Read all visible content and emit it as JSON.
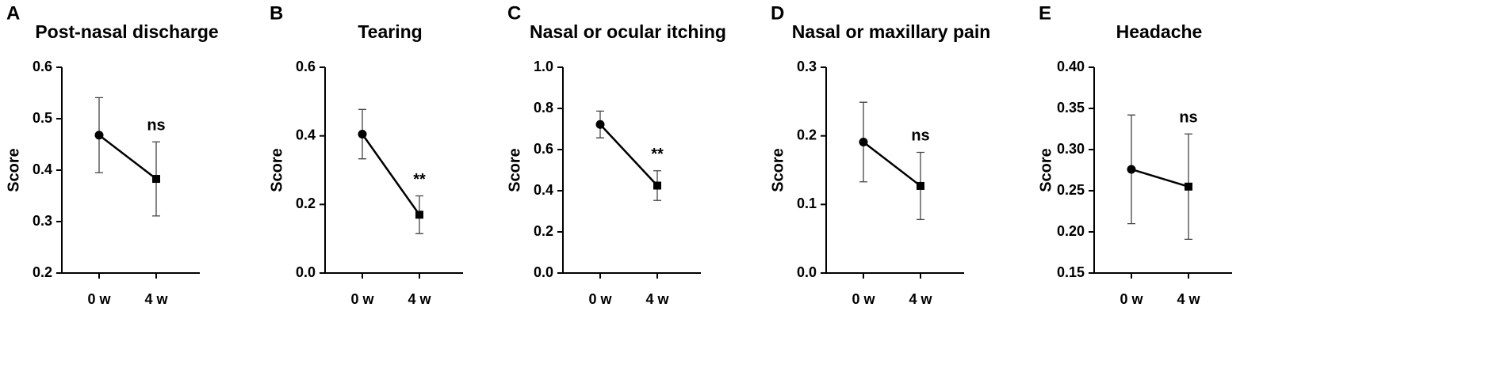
{
  "chart_data": [
    {
      "type": "line",
      "panel_label": "A",
      "title": "Post-nasal discharge",
      "y_label": "Score",
      "categories": [
        "0 w",
        "4 w"
      ],
      "values": [
        0.468,
        0.383
      ],
      "errors": [
        0.073,
        0.072
      ],
      "markers": [
        "circle",
        "square"
      ],
      "color": "#000000",
      "annotation": "ns",
      "ylim": [
        0.2,
        0.6
      ],
      "yticks": [
        0.2,
        0.3,
        0.4,
        0.5,
        0.6
      ]
    },
    {
      "type": "line",
      "panel_label": "B",
      "title": "Tearing",
      "y_label": "Score",
      "categories": [
        "0 w",
        "4 w"
      ],
      "values": [
        0.405,
        0.17
      ],
      "errors": [
        0.072,
        0.055
      ],
      "markers": [
        "circle",
        "square"
      ],
      "color": "#000000",
      "annotation": "**",
      "ylim": [
        0,
        0.6
      ],
      "yticks": [
        {
          "value": 0,
          "label": "0.0"
        },
        0.2,
        0.4,
        0.6
      ]
    },
    {
      "type": "line",
      "panel_label": "C",
      "title": "Nasal or ocular itching",
      "y_label": "Score",
      "categories": [
        "0 w",
        "4 w"
      ],
      "values": [
        0.722,
        0.425
      ],
      "errors": [
        0.065,
        0.072
      ],
      "markers": [
        "circle",
        "square"
      ],
      "color": "#000000",
      "annotation": "**",
      "ylim": [
        0,
        1
      ],
      "yticks": [
        {
          "value": 0,
          "label": "0.0"
        },
        0.2,
        0.4,
        0.6,
        0.8,
        {
          "value": 1,
          "label": "1.0"
        }
      ]
    },
    {
      "type": "line",
      "panel_label": "D",
      "title": "Nasal or maxillary pain",
      "y_label": "Score",
      "categories": [
        "0 w",
        "4 w"
      ],
      "values": [
        0.191,
        0.127
      ],
      "errors": [
        0.058,
        0.049
      ],
      "markers": [
        "circle",
        "square"
      ],
      "color": "#000000",
      "annotation": "ns",
      "ylim": [
        0,
        0.3
      ],
      "yticks": [
        {
          "value": 0,
          "label": "0.0"
        },
        0.1,
        0.2,
        0.3
      ]
    },
    {
      "type": "line",
      "panel_label": "E",
      "title": "Headache",
      "y_label": "Score",
      "categories": [
        "0 w",
        "4 w"
      ],
      "values": [
        0.276,
        0.255
      ],
      "errors": [
        0.066,
        0.064
      ],
      "markers": [
        "circle",
        "square"
      ],
      "color": "#000000",
      "annotation": "ns",
      "ylim": [
        0.15,
        0.4
      ],
      "yticks": [
        0.15,
        {
          "value": 0.2,
          "label": "0.20"
        },
        0.25,
        {
          "value": 0.3,
          "label": "0.30"
        },
        0.35,
        {
          "value": 0.4,
          "label": "0.40"
        }
      ]
    }
  ]
}
